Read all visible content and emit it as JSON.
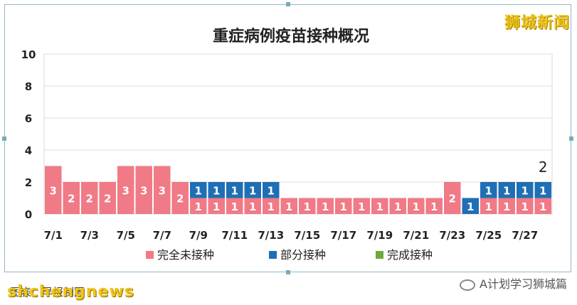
{
  "brand": {
    "logo_text": "狮城新闻",
    "watermark": "shchengnews"
  },
  "footer": {
    "source_label": "图表：早报制图",
    "wechat_account": "A计划学习狮城篇",
    "wechat_icon": "wechat-icon"
  },
  "colors": {
    "unvaccinated": "#f07a86",
    "partial": "#1f6fb5",
    "full": "#70a83a",
    "frame": "#8fb9c9"
  },
  "chart_data": {
    "type": "bar",
    "stacked": true,
    "title": "重症病例疫苗接种概况",
    "categories": [
      "7/1",
      "7/2",
      "7/3",
      "7/4",
      "7/5",
      "7/6",
      "7/7",
      "7/8",
      "7/9",
      "7/10",
      "7/11",
      "7/12",
      "7/13",
      "7/14",
      "7/15",
      "7/16",
      "7/17",
      "7/18",
      "7/19",
      "7/20",
      "7/21",
      "7/22",
      "7/23",
      "7/24",
      "7/25",
      "7/26",
      "7/27",
      "7/28"
    ],
    "x_tick_labels": [
      "7/1",
      "7/3",
      "7/5",
      "7/7",
      "7/9",
      "7/11",
      "7/13",
      "7/15",
      "7/17",
      "7/19",
      "7/21",
      "7/23",
      "7/25",
      "7/27"
    ],
    "series": [
      {
        "name": "完全未接种",
        "color": "#f07a86",
        "values": [
          3,
          2,
          2,
          2,
          3,
          3,
          3,
          2,
          1,
          1,
          1,
          1,
          1,
          1,
          1,
          1,
          1,
          1,
          1,
          1,
          1,
          1,
          2,
          0,
          1,
          1,
          1,
          1
        ]
      },
      {
        "name": "部分接种",
        "color": "#1f6fb5",
        "values": [
          0,
          0,
          0,
          0,
          0,
          0,
          0,
          0,
          1,
          1,
          1,
          1,
          1,
          0,
          0,
          0,
          0,
          0,
          0,
          0,
          0,
          0,
          0,
          1,
          1,
          1,
          1,
          1
        ]
      },
      {
        "name": "完成接种",
        "color": "#70a83a",
        "values": [
          0,
          0,
          0,
          0,
          0,
          0,
          0,
          0,
          0,
          0,
          0,
          0,
          0,
          0,
          0,
          0,
          0,
          0,
          0,
          0,
          0,
          0,
          0,
          0,
          0,
          0,
          0,
          0
        ]
      }
    ],
    "annotations": [
      {
        "category": "7/28",
        "text": "2"
      }
    ],
    "ylim": [
      0,
      10
    ],
    "yticks": [
      "0",
      "2",
      "4",
      "6",
      "8",
      "10"
    ],
    "grid": true,
    "legend": "bottom"
  }
}
